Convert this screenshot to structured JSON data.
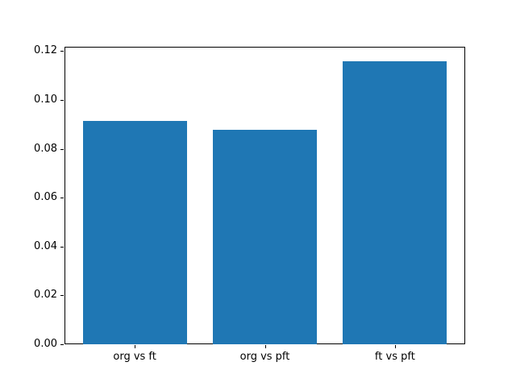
{
  "chart_data": {
    "type": "bar",
    "title": "",
    "xlabel": "",
    "ylabel": "",
    "categories": [
      "org vs ft",
      "org vs pft",
      "ft vs pft"
    ],
    "values": [
      0.0915,
      0.0878,
      0.116
    ],
    "bar_color": "#1f77b4",
    "ylim": [
      0,
      0.1218
    ],
    "yticks": [
      0.0,
      0.02,
      0.04,
      0.06,
      0.08,
      0.1,
      0.12
    ],
    "ytick_labels": [
      "0.00",
      "0.02",
      "0.04",
      "0.06",
      "0.08",
      "0.10",
      "0.12"
    ],
    "grid": false,
    "legend": null,
    "background_color": "#ffffff",
    "spine_color": "#000000"
  }
}
